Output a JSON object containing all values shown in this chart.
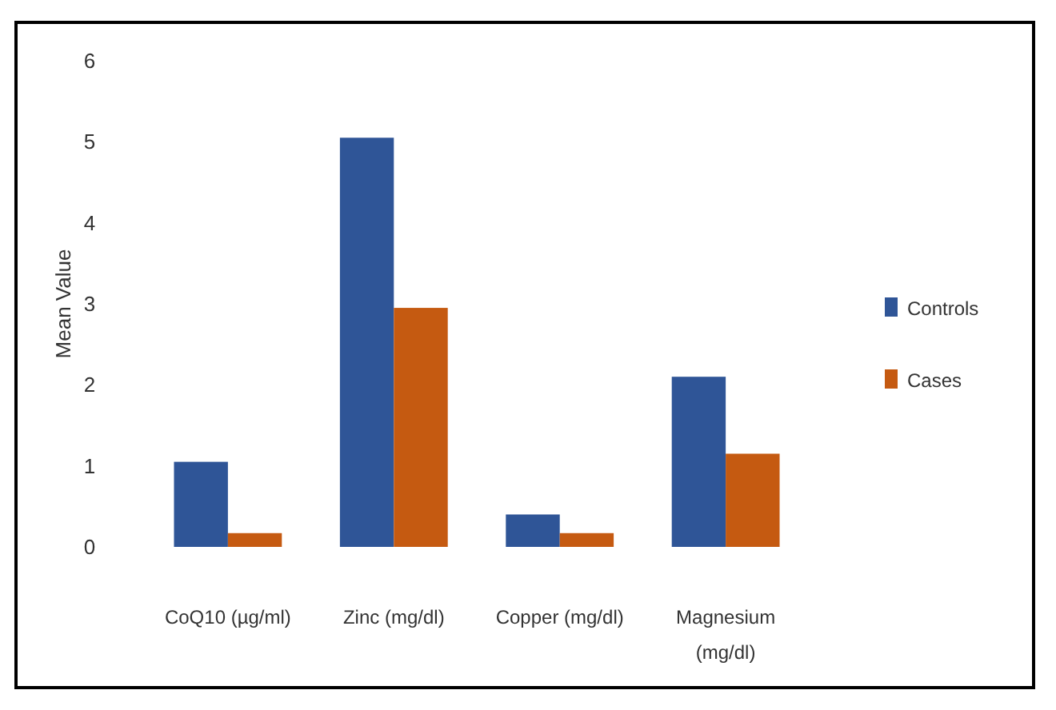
{
  "chart_data": {
    "type": "bar",
    "ylabel": "Mean Value",
    "categories": [
      "CoQ10 (µg/ml)",
      "Zinc (mg/dl)",
      "Copper (mg/dl)",
      "Magnesium (mg/dl)"
    ],
    "series": [
      {
        "name": "Controls",
        "color": "#2f5597",
        "values": [
          1.05,
          5.05,
          0.4,
          2.1
        ]
      },
      {
        "name": "Cases",
        "color": "#c55a11",
        "values": [
          0.17,
          2.95,
          0.17,
          1.15
        ]
      }
    ],
    "ylim": [
      0,
      6
    ],
    "yticks": [
      0,
      1,
      2,
      3,
      4,
      5,
      6
    ],
    "grid": false,
    "legend": "right"
  }
}
